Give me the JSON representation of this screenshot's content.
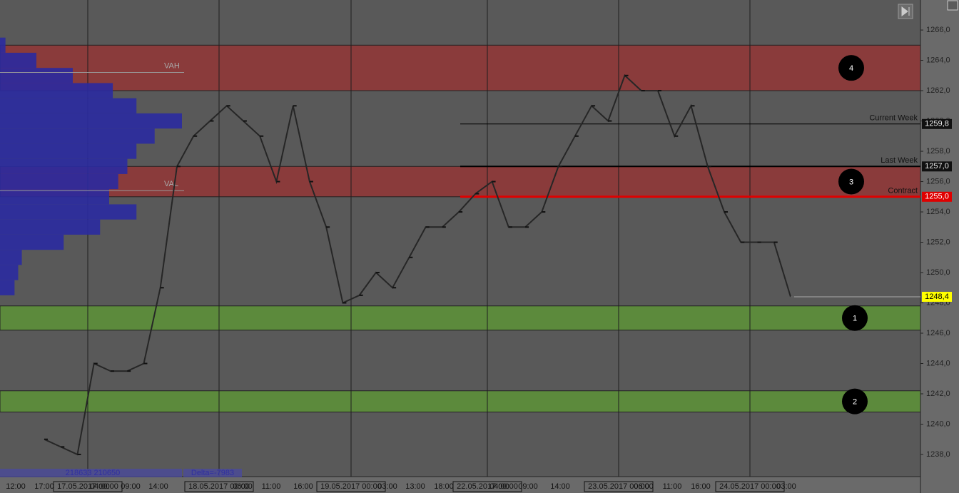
{
  "chart_data": {
    "type": "line",
    "color": "#262626",
    "values": [
      1239,
      1238.5,
      1238,
      1244,
      1243.5,
      1243.5,
      1244,
      1249,
      1257,
      1259,
      1260,
      1261,
      1260,
      1259,
      1256,
      1261,
      1256,
      1253,
      1248,
      1248.5,
      1250,
      1249,
      1251,
      1253,
      1253,
      1254,
      1255.2,
      1256,
      1253,
      1253,
      1254,
      1257,
      1259,
      1261,
      1260,
      1263,
      1262,
      1262,
      1259,
      1261,
      1257,
      1254,
      1252,
      1252,
      1252,
      1248.4
    ],
    "ylim": [
      1236.54,
      1267.98
    ],
    "yticks": [
      {
        "value": 1238,
        "label": "1238,0"
      },
      {
        "value": 1240,
        "label": "1240,0"
      },
      {
        "value": 1242,
        "label": "1242,0"
      },
      {
        "value": 1244,
        "label": "1244,0"
      },
      {
        "value": 1246,
        "label": "1246,0"
      },
      {
        "value": 1248,
        "label": "1248,0"
      },
      {
        "value": 1250,
        "label": "1250,0"
      },
      {
        "value": 1252,
        "label": "1252,0"
      },
      {
        "value": 1254,
        "label": "1254,0"
      },
      {
        "value": 1256,
        "label": "1256,0"
      },
      {
        "value": 1258,
        "label": "1258,0"
      },
      {
        "value": 1260,
        "label": "1260,0"
      },
      {
        "value": 1262,
        "label": "1262,0"
      },
      {
        "value": 1264,
        "label": "1264,0"
      },
      {
        "value": 1266,
        "label": "1266,0"
      }
    ],
    "x_labels": [
      "12:00",
      "17:00",
      "04:00",
      "09:00",
      "14:00",
      "06:00",
      "11:00",
      "16:00",
      "03:00",
      "13:00",
      "18:00",
      "04:00",
      "09:00",
      "14:00",
      "06:00",
      "11:00",
      "16:00",
      "03:00"
    ],
    "date_labels": [
      "17.05.2017 00:00",
      "18.05.2017 00:00",
      "19.05.2017 00:00",
      "22.05.2017 00:00",
      "23.05.2017 00:00",
      "24.05.2017 00:00"
    ],
    "zones": [
      {
        "label": "4",
        "low": 1262,
        "high": 1265,
        "color": "#8a3b3b"
      },
      {
        "label": "3",
        "low": 1255,
        "high": 1257,
        "color": "#8a3b3b"
      },
      {
        "label": "1",
        "low": 1246.2,
        "high": 1247.8,
        "color": "#5c8a3c"
      },
      {
        "label": "2",
        "low": 1240.8,
        "high": 1242.2,
        "color": "#5c8a3c"
      }
    ],
    "levels": [
      {
        "label": "Current Week",
        "value": 1259.8,
        "value_label": "1259,8",
        "color": "#000000"
      },
      {
        "label": "Last Week",
        "value": 1257.0,
        "value_label": "1257,0",
        "color": "#000000"
      },
      {
        "label": "Contract",
        "value": 1255.0,
        "value_label": "1255,0",
        "color": "#e00000"
      }
    ],
    "last_price": {
      "value": 1248.4,
      "label": "1248,4",
      "color": "#ffff00"
    },
    "value_area": [
      {
        "label": "VAH",
        "value": 1263.2
      },
      {
        "label": "VAL",
        "value": 1255.4
      }
    ],
    "profile": {
      "color": "#2a2aa0",
      "prices": [
        1249,
        1250,
        1251,
        1252,
        1253,
        1254,
        1255,
        1256,
        1257,
        1258,
        1259,
        1260,
        1261,
        1262,
        1263,
        1264,
        1265
      ],
      "volumes": [
        8,
        10,
        12,
        35,
        55,
        75,
        60,
        65,
        70,
        75,
        85,
        100,
        75,
        62,
        40,
        20,
        3
      ]
    },
    "footer_labels": [
      "218633 210650",
      "Delta=-7983"
    ]
  }
}
